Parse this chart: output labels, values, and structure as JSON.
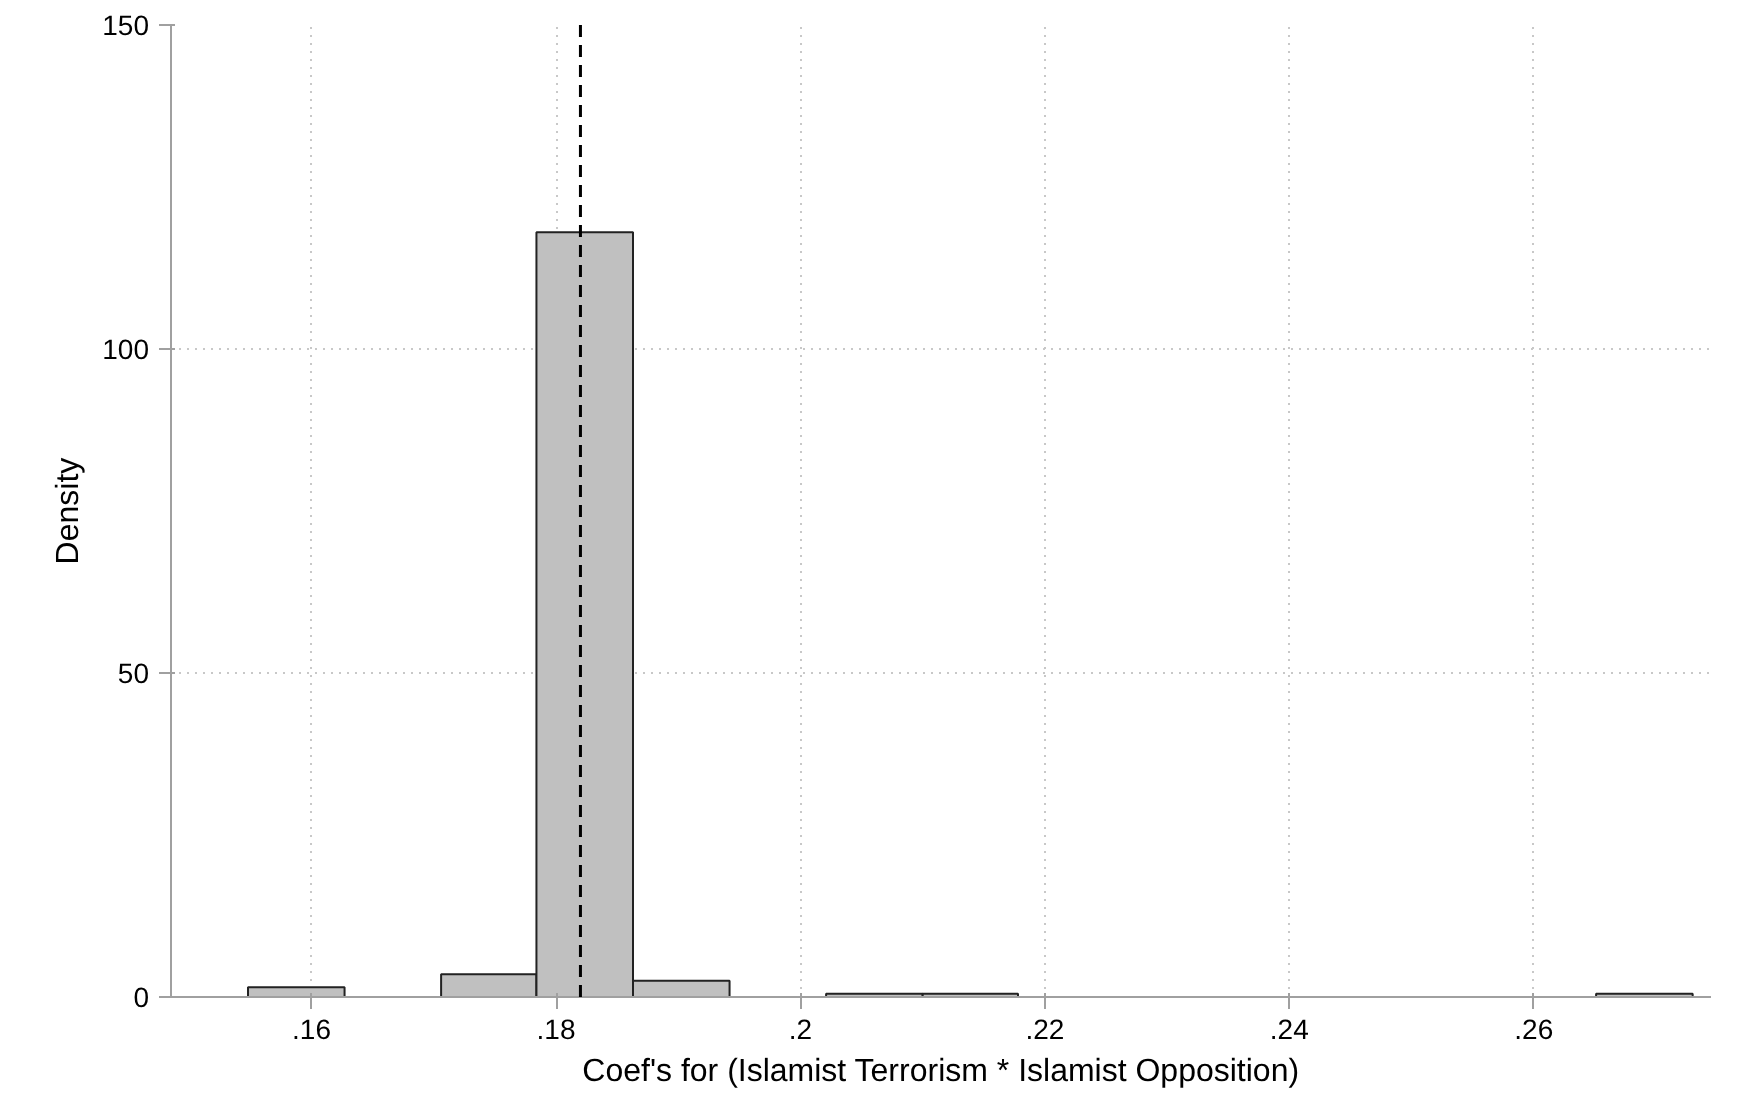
{
  "chart_data": {
    "type": "histogram",
    "xlabel": "Coef's for (Islamist Terrorism * Islamist Opposition)",
    "ylabel": "Density",
    "bins": [
      0.1548,
      0.1627,
      0.1706,
      0.1784,
      0.1863,
      0.1942,
      0.2021,
      0.21,
      0.2178,
      0.2651,
      0.273
    ],
    "values": [
      1.5,
      0,
      3.5,
      118,
      2.5,
      0,
      0.5,
      0.5,
      0,
      0.5
    ],
    "color": "#c0c0c0",
    "xlim": [
      0.1485,
      0.2745
    ],
    "ylim": [
      0,
      150
    ],
    "xticks": [
      {
        "value": 0.16,
        "label": ".16"
      },
      {
        "value": 0.18,
        "label": ".18"
      },
      {
        "value": 0.2,
        "label": ".2"
      },
      {
        "value": 0.22,
        "label": ".22"
      },
      {
        "value": 0.24,
        "label": ".24"
      },
      {
        "value": 0.26,
        "label": ".26"
      }
    ],
    "yticks": [
      0,
      50,
      100,
      150
    ],
    "ref_lines": [
      {
        "axis": "x",
        "value": 0.182,
        "line_style": "dashed",
        "color": "#000000"
      }
    ],
    "grid": true
  }
}
